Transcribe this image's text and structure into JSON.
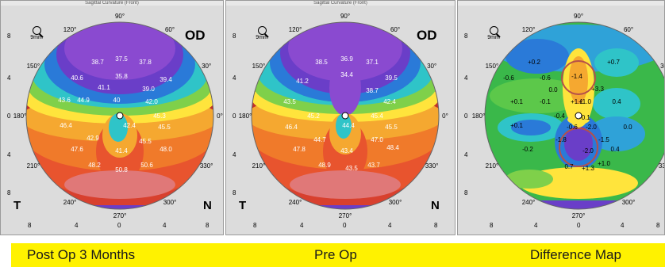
{
  "panels": [
    {
      "header": "Sagittal Curvature (Front)",
      "eye": "OD",
      "scale": "9mm",
      "side_left": "T",
      "side_right": "N",
      "angle_labels": [
        "90°",
        "60°",
        "30°",
        "0°",
        "330°",
        "300°",
        "270°",
        "240°",
        "210°",
        "180°",
        "150°",
        "120°"
      ],
      "y_ticks": [
        "8",
        "4",
        "0",
        "4",
        "8"
      ],
      "x_ticks": [
        "8",
        "4",
        "0",
        "4",
        "8"
      ],
      "values": [
        "38.7",
        "37.5",
        "37.8",
        "35.8",
        "40.6",
        "41.1",
        "39.4",
        "39.0",
        "43.6",
        "44.9",
        "40",
        "42.0",
        "46.4",
        "42.4",
        "45.3",
        "45.5",
        "42.9",
        "45.5",
        "47.6",
        "41.4",
        "48.0",
        "48.2",
        "50.8",
        "50.6"
      ]
    },
    {
      "header": "Sagittal Curvature (Front)",
      "eye": "OD",
      "scale": "9mm",
      "side_left": "T",
      "side_right": "N",
      "angle_labels": [
        "90°",
        "60°",
        "30°",
        "0°",
        "330°",
        "300°",
        "270°",
        "240°",
        "210°",
        "180°",
        "150°",
        "120°"
      ],
      "y_ticks": [
        "8",
        "4",
        "0",
        "4",
        "8"
      ],
      "x_ticks": [
        "8",
        "4",
        "0",
        "4",
        "8"
      ],
      "values": [
        "38.5",
        "36.9",
        "37.1",
        "34.4",
        "41.2",
        "39.5",
        "38.7",
        "43.5",
        "45.2",
        "42.4",
        "46.4",
        "44.7",
        "44.4",
        "45.4",
        "45.5",
        "47.0",
        "47.8",
        "43.4",
        "48.4",
        "48.9",
        "43.5",
        "43.7"
      ]
    },
    {
      "header": "",
      "eye": "",
      "scale": "9mm",
      "side_left": "",
      "side_right": "",
      "angle_labels": [
        "90°",
        "60°",
        "30°",
        "0°",
        "330°",
        "300°",
        "270°",
        "240°",
        "210°",
        "180°",
        "150°",
        "120°"
      ],
      "y_ticks": [
        "8",
        "4",
        "0",
        "4",
        "8"
      ],
      "x_ticks": [
        "8",
        "4",
        "0",
        "4",
        "8"
      ],
      "values": [
        "+0.2",
        "-0.6",
        "+0.7",
        "-0.6",
        "-1.4",
        "0.0",
        "+3.3",
        "-0.1",
        "+0.1",
        "+1.1",
        "+1.0",
        "0.4",
        "-0.4",
        "-0.1",
        "+0.1",
        "-0.6",
        "-2.0",
        "0.0",
        "-1.8",
        "-1.5",
        "-0.2",
        "-2.0",
        "0.4",
        "0.7",
        "+1.3",
        "+1.0"
      ]
    }
  ],
  "captions": {
    "left": "Post Op 3 Months",
    "middle": "Pre Op",
    "right": "Difference Map"
  },
  "colors": {
    "caption_bar": "#fff200",
    "highlight_circle": "#b5504a"
  }
}
